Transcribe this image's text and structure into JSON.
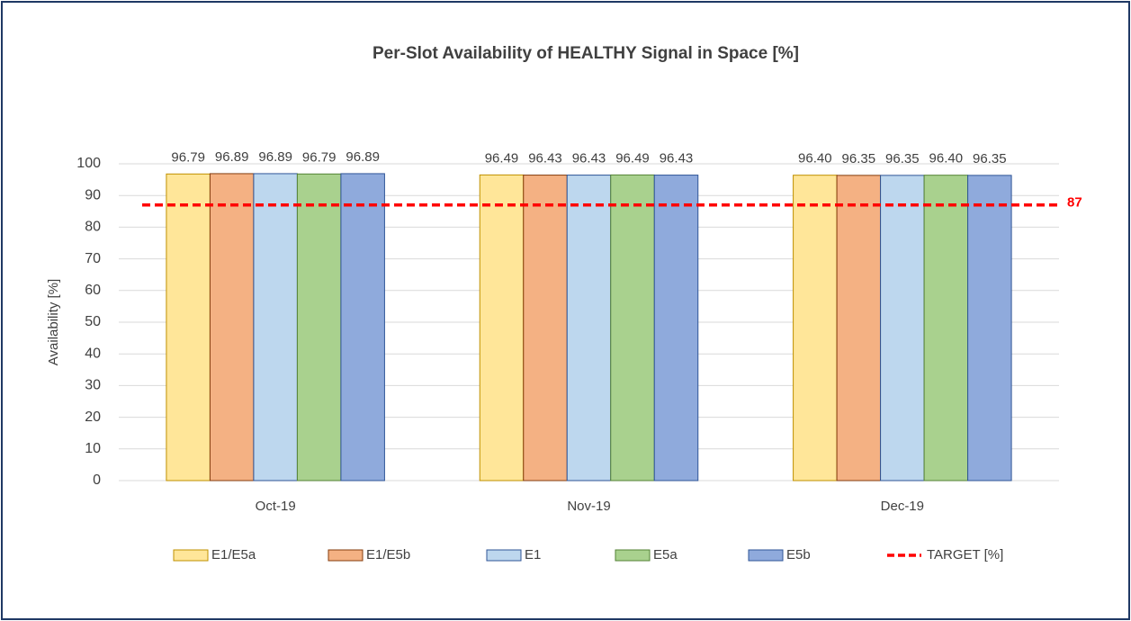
{
  "chart_data": {
    "type": "bar",
    "title": "Per-Slot Availability of HEALTHY Signal in Space [%]",
    "y_label": "Availability [%]",
    "categories": [
      "Oct-19",
      "Nov-19",
      "Dec-19"
    ],
    "series": [
      {
        "name": "E1/E5a",
        "color": "#FFE699",
        "border": "#BF9000",
        "values": [
          96.79,
          96.49,
          96.4
        ],
        "value_labels": [
          "96.79",
          "96.49",
          "96.40"
        ]
      },
      {
        "name": "E1/E5b",
        "color": "#F4B183",
        "border": "#843C0C",
        "values": [
          96.89,
          96.43,
          96.35
        ],
        "value_labels": [
          "96.89",
          "96.43",
          "96.35"
        ]
      },
      {
        "name": "E1",
        "color": "#BDD7EE",
        "border": "#2F5597",
        "values": [
          96.89,
          96.43,
          96.35
        ],
        "value_labels": [
          "96.89",
          "96.43",
          "96.35"
        ]
      },
      {
        "name": "E5a",
        "color": "#A9D18E",
        "border": "#548235",
        "values": [
          96.79,
          96.49,
          96.4
        ],
        "value_labels": [
          "96.79",
          "96.49",
          "96.40"
        ]
      },
      {
        "name": "E5b",
        "color": "#8FAADC",
        "border": "#2F5597",
        "values": [
          96.89,
          96.43,
          96.35
        ],
        "value_labels": [
          "96.89",
          "96.43",
          "96.35"
        ]
      }
    ],
    "target": {
      "name": "TARGET [%]",
      "color": "#FF0000",
      "value": 87
    },
    "ylim": [
      0,
      100
    ],
    "yticks": [
      0,
      10,
      20,
      30,
      40,
      50,
      60,
      70,
      80,
      90,
      100
    ],
    "grid": true
  }
}
